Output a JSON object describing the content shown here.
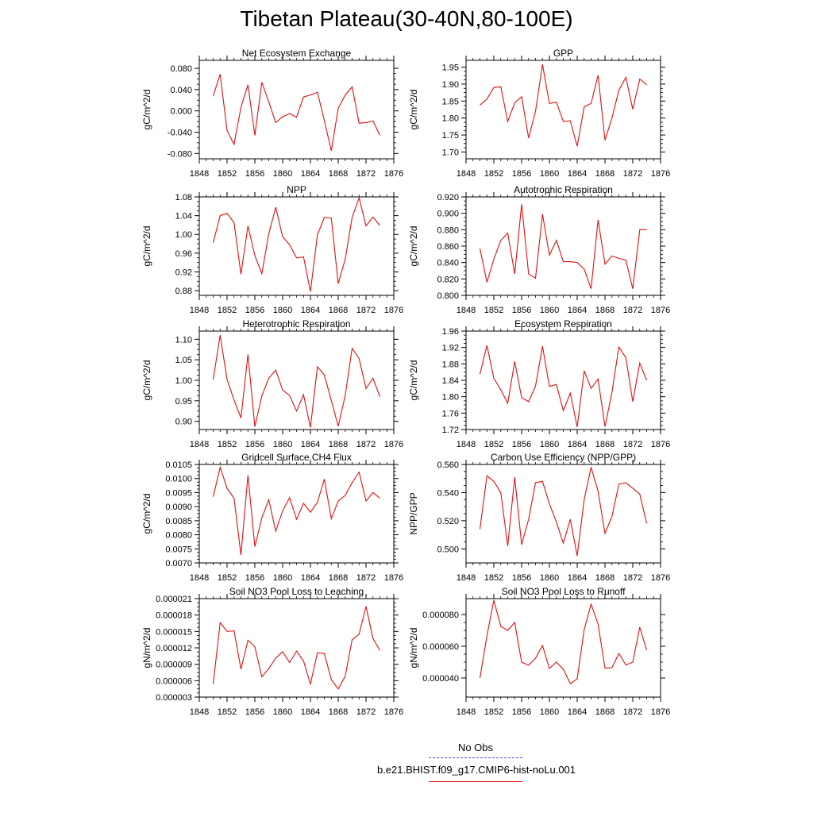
{
  "title": "Tibetan Plateau(30-40N,80-100E)",
  "legend": {
    "obs_label": "No Obs",
    "obs_color": "#4a4ad8",
    "case_label": "b.e21.BHIST.f09_g17.CMIP6-hist-noLu.001",
    "case_color": "#e01010"
  },
  "years": [
    1850,
    1851,
    1852,
    1853,
    1854,
    1855,
    1856,
    1857,
    1858,
    1859,
    1860,
    1861,
    1862,
    1863,
    1864,
    1865,
    1866,
    1867,
    1868,
    1869,
    1870,
    1871,
    1872,
    1873,
    1874
  ],
  "chart_data": [
    {
      "type": "line",
      "title": "Net Ecosystem Exchange",
      "ylabel": "gC/m^2/d",
      "xlim": [
        1848,
        1876
      ],
      "xticks": [
        "1848",
        "1852",
        "1856",
        "1860",
        "1864",
        "1868",
        "1872",
        "1876"
      ],
      "ylim": [
        -0.09,
        0.095
      ],
      "yticks": [
        "-0.080",
        "-0.040",
        "0.000",
        "0.040",
        "0.080"
      ],
      "ytickvals": [
        -0.08,
        -0.04,
        0,
        0.04,
        0.08
      ],
      "series": [
        {
          "values": [
            0.028,
            0.069,
            -0.037,
            -0.063,
            0.007,
            0.049,
            -0.046,
            0.054,
            0.017,
            -0.022,
            -0.011,
            -0.005,
            -0.012,
            0.026,
            0.03,
            0.035,
            -0.018,
            -0.075,
            0.005,
            0.03,
            0.045,
            -0.023,
            -0.022,
            -0.019,
            -0.046
          ]
        }
      ]
    },
    {
      "type": "line",
      "title": "GPP",
      "ylabel": "gC/m^2/d",
      "xlim": [
        1848,
        1876
      ],
      "xticks": [
        "1848",
        "1852",
        "1856",
        "1860",
        "1864",
        "1868",
        "1872",
        "1876"
      ],
      "ylim": [
        1.68,
        1.97
      ],
      "yticks": [
        "1.70",
        "1.75",
        "1.80",
        "1.85",
        "1.90",
        "1.95"
      ],
      "ytickvals": [
        1.7,
        1.75,
        1.8,
        1.85,
        1.9,
        1.95
      ],
      "series": [
        {
          "values": [
            1.838,
            1.856,
            1.89,
            1.892,
            1.79,
            1.845,
            1.863,
            1.741,
            1.82,
            1.958,
            1.843,
            1.847,
            1.79,
            1.792,
            1.717,
            1.833,
            1.843,
            1.926,
            1.735,
            1.8,
            1.882,
            1.92,
            1.826,
            1.915,
            1.898
          ]
        }
      ]
    },
    {
      "type": "line",
      "title": "NPP",
      "ylabel": "gC/m^2/d",
      "xlim": [
        1848,
        1876
      ],
      "xticks": [
        "1848",
        "1852",
        "1856",
        "1860",
        "1864",
        "1868",
        "1872",
        "1876"
      ],
      "ylim": [
        0.87,
        1.08
      ],
      "yticks": [
        "0.88",
        "0.92",
        "0.96",
        "1.00",
        "1.04",
        "1.08"
      ],
      "ytickvals": [
        0.88,
        0.92,
        0.96,
        1.0,
        1.04,
        1.08
      ],
      "series": [
        {
          "values": [
            0.982,
            1.04,
            1.045,
            1.025,
            0.915,
            1.018,
            0.955,
            0.916,
            1.001,
            1.058,
            0.995,
            0.978,
            0.95,
            0.952,
            0.878,
            0.999,
            1.036,
            1.035,
            0.895,
            0.947,
            1.036,
            1.078,
            1.018,
            1.037,
            1.019
          ]
        }
      ]
    },
    {
      "type": "line",
      "title": "Autotrophic Respiration",
      "ylabel": "gC/m^2/d",
      "xlim": [
        1848,
        1876
      ],
      "xticks": [
        "1848",
        "1852",
        "1856",
        "1860",
        "1864",
        "1868",
        "1872",
        "1876"
      ],
      "ylim": [
        0.8,
        0.92
      ],
      "yticks": [
        "0.800",
        "0.820",
        "0.840",
        "0.860",
        "0.880",
        "0.900",
        "0.920"
      ],
      "ytickvals": [
        0.8,
        0.82,
        0.84,
        0.86,
        0.88,
        0.9,
        0.92
      ],
      "series": [
        {
          "values": [
            0.857,
            0.816,
            0.844,
            0.867,
            0.876,
            0.826,
            0.911,
            0.826,
            0.821,
            0.899,
            0.849,
            0.867,
            0.841,
            0.841,
            0.84,
            0.832,
            0.808,
            0.892,
            0.838,
            0.848,
            0.845,
            0.843,
            0.808,
            0.88,
            0.88
          ]
        }
      ]
    },
    {
      "type": "line",
      "title": "Heterotrophic Respiration",
      "ylabel": "gC/m^2/d",
      "xlim": [
        1848,
        1876
      ],
      "xticks": [
        "1848",
        "1852",
        "1856",
        "1860",
        "1864",
        "1868",
        "1872",
        "1876"
      ],
      "ylim": [
        0.88,
        1.12
      ],
      "yticks": [
        "0.90",
        "0.95",
        "1.00",
        "1.05",
        "1.10"
      ],
      "ytickvals": [
        0.9,
        0.95,
        1.0,
        1.05,
        1.1
      ],
      "series": [
        {
          "values": [
            1.002,
            1.11,
            1.002,
            0.952,
            0.908,
            1.063,
            0.887,
            0.962,
            1.005,
            1.025,
            0.976,
            0.963,
            0.925,
            0.965,
            0.885,
            1.033,
            1.013,
            0.951,
            0.888,
            0.963,
            1.078,
            1.053,
            0.98,
            1.005,
            0.96
          ]
        }
      ]
    },
    {
      "type": "line",
      "title": "Ecosystem Respiration",
      "ylabel": "gC/m^2/d",
      "xlim": [
        1848,
        1876
      ],
      "xticks": [
        "1848",
        "1852",
        "1856",
        "1860",
        "1864",
        "1868",
        "1872",
        "1876"
      ],
      "ylim": [
        1.72,
        1.96
      ],
      "yticks": [
        "1.72",
        "1.76",
        "1.80",
        "1.84",
        "1.88",
        "1.92",
        "1.96"
      ],
      "ytickvals": [
        1.72,
        1.76,
        1.8,
        1.84,
        1.88,
        1.92,
        1.96
      ],
      "series": [
        {
          "values": [
            1.855,
            1.925,
            1.845,
            1.817,
            1.784,
            1.886,
            1.798,
            1.788,
            1.826,
            1.923,
            1.825,
            1.83,
            1.766,
            1.809,
            1.726,
            1.863,
            1.82,
            1.843,
            1.727,
            1.811,
            1.921,
            1.895,
            1.788,
            1.882,
            1.84
          ]
        }
      ]
    },
    {
      "type": "line",
      "title": "Gridcell Surface CH4 Flux",
      "ylabel": "gC/m^2/d",
      "xlim": [
        1848,
        1876
      ],
      "xticks": [
        "1848",
        "1852",
        "1856",
        "1860",
        "1864",
        "1868",
        "1872",
        "1876"
      ],
      "ylim": [
        0.007,
        0.0105
      ],
      "yticks": [
        "0.0070",
        "0.0075",
        "0.0080",
        "0.0085",
        "0.0090",
        "0.0095",
        "0.0100",
        "0.0105"
      ],
      "ytickvals": [
        0.007,
        0.0075,
        0.008,
        0.0085,
        0.009,
        0.0095,
        0.01,
        0.0105
      ],
      "series": [
        {
          "values": [
            0.00935,
            0.0104,
            0.00965,
            0.0093,
            0.00728,
            0.01012,
            0.00758,
            0.0086,
            0.00925,
            0.00813,
            0.00885,
            0.00932,
            0.00855,
            0.00912,
            0.0088,
            0.00915,
            0.00998,
            0.00857,
            0.0092,
            0.0094,
            0.00985,
            0.01023,
            0.0092,
            0.0095,
            0.0093
          ]
        }
      ]
    },
    {
      "type": "line",
      "title": "Carbon Use Efficiency (NPP/GPP)",
      "ylabel": "NPP/GPP",
      "xlim": [
        1848,
        1876
      ],
      "xticks": [
        "1848",
        "1852",
        "1856",
        "1860",
        "1864",
        "1868",
        "1872",
        "1876"
      ],
      "ylim": [
        0.49,
        0.56
      ],
      "yticks": [
        "0.500",
        "0.520",
        "0.540",
        "0.560"
      ],
      "ytickvals": [
        0.5,
        0.52,
        0.54,
        0.56
      ],
      "series": [
        {
          "values": [
            0.514,
            0.552,
            0.548,
            0.54,
            0.502,
            0.551,
            0.503,
            0.521,
            0.547,
            0.548,
            0.532,
            0.519,
            0.504,
            0.521,
            0.495,
            0.535,
            0.558,
            0.541,
            0.511,
            0.523,
            0.546,
            0.547,
            0.543,
            0.539,
            0.518
          ]
        }
      ]
    },
    {
      "type": "line",
      "title": "Soil NO3 Pool Loss to Leaching",
      "ylabel": "gN/m^2/d",
      "xlim": [
        1848,
        1876
      ],
      "xticks": [
        "1848",
        "1852",
        "1856",
        "1860",
        "1864",
        "1868",
        "1872",
        "1876"
      ],
      "ylim": [
        3e-06,
        2.1e-05
      ],
      "yticks": [
        "0.000003",
        "0.000006",
        "0.000009",
        "0.000012",
        "0.000015",
        "0.000018",
        "0.000021"
      ],
      "ytickvals": [
        3e-06,
        6e-06,
        9e-06,
        1.2e-05,
        1.5e-05,
        1.8e-05,
        2.1e-05
      ],
      "series": [
        {
          "values": [
            5.4e-06,
            1.66e-05,
            1.5e-05,
            1.51e-05,
            8.1e-06,
            1.34e-05,
            1.22e-05,
            6.7e-06,
            8.2e-06,
            1.01e-05,
            1.13e-05,
            9.3e-06,
            1.14e-05,
            9.6e-06,
            5.4e-06,
            1.11e-05,
            1.1e-05,
            6.2e-06,
            4.5e-06,
            6.8e-06,
            1.35e-05,
            1.45e-05,
            1.96e-05,
            1.37e-05,
            1.15e-05
          ]
        }
      ]
    },
    {
      "type": "line",
      "title": "Soil NO3 Pool Loss to Runoff",
      "ylabel": "gN/m^2/d",
      "xlim": [
        1848,
        1876
      ],
      "xticks": [
        "1848",
        "1852",
        "1856",
        "1860",
        "1864",
        "1868",
        "1872",
        "1876"
      ],
      "ylim": [
        2.8e-05,
        9e-05
      ],
      "yticks": [
        "0.000040",
        "0.000060",
        "0.000080"
      ],
      "ytickvals": [
        4e-05,
        6e-05,
        8e-05
      ],
      "series": [
        {
          "values": [
            4e-05,
            6.65e-05,
            8.9e-05,
            7.25e-05,
            7e-05,
            7.5e-05,
            5e-05,
            4.8e-05,
            5.25e-05,
            6.05e-05,
            4.6e-05,
            5e-05,
            4.55e-05,
            3.65e-05,
            3.95e-05,
            7.05e-05,
            8.65e-05,
            7.4e-05,
            4.62e-05,
            4.65e-05,
            5.55e-05,
            4.82e-05,
            5e-05,
            7.2e-05,
            5.75e-05
          ]
        }
      ]
    }
  ]
}
